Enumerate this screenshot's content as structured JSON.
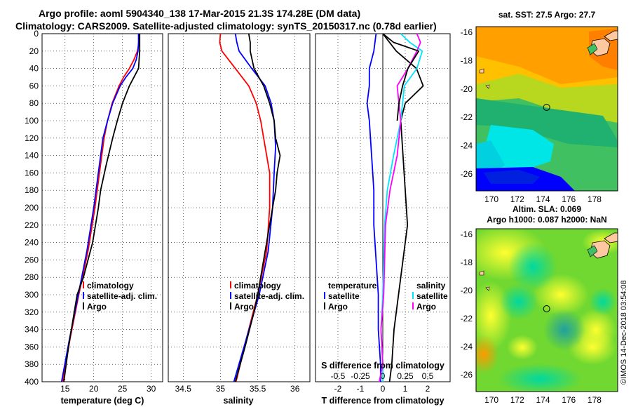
{
  "title": {
    "line1": "Argo profile: aoml 5904340_138 17-Mar-2015 21.3S 174.28E (DM data)",
    "line2": "Climatology: CARS2009. Satellite-adjusted climatology: synTS_20150317.nc (0.78d earlier)"
  },
  "credit": "©IMOS 14-Dec-2018 03:54:08",
  "colors": {
    "climatology": "#ff0000",
    "satellite": "#0000ff",
    "argo": "#000000",
    "sat_sal": "#00e5ff",
    "clim_sal": "#ff00ff"
  },
  "chart_data": [
    {
      "type": "line",
      "panel": "temperature",
      "xlabel": "temperature (deg C)",
      "xlim": [
        11,
        32
      ],
      "ylim": [
        400,
        0
      ],
      "xticks": [
        15,
        20,
        25,
        30
      ],
      "yticks": [
        0,
        20,
        40,
        60,
        80,
        100,
        120,
        140,
        160,
        180,
        200,
        220,
        240,
        260,
        280,
        300,
        320,
        340,
        360,
        380,
        400
      ],
      "legend": {
        "position": "lower-right",
        "entries": [
          "climatology",
          "satellite-adj. clim.",
          "Argo"
        ]
      },
      "series": [
        {
          "name": "climatology",
          "color": "#ff0000",
          "depth": [
            0,
            10,
            20,
            30,
            40,
            50,
            60,
            80,
            100,
            120,
            150,
            200,
            250,
            300,
            350,
            400
          ],
          "values": [
            28.0,
            27.9,
            27.6,
            27.0,
            26.2,
            25.2,
            24.4,
            23.2,
            22.4,
            21.8,
            21.2,
            20.2,
            19.0,
            17.4,
            15.9,
            14.6
          ]
        },
        {
          "name": "satellite-adj. clim.",
          "color": "#0000ff",
          "depth": [
            0,
            10,
            20,
            30,
            40,
            50,
            60,
            80,
            100,
            120,
            150,
            200,
            250,
            300,
            350,
            400
          ],
          "values": [
            27.8,
            27.8,
            27.7,
            27.4,
            26.8,
            25.6,
            24.6,
            23.3,
            22.4,
            21.6,
            21.0,
            20.0,
            18.8,
            17.3,
            15.8,
            14.4
          ]
        },
        {
          "name": "Argo",
          "color": "#000000",
          "depth": [
            0,
            20,
            40,
            60,
            80,
            100,
            120,
            150,
            180,
            200,
            240,
            280,
            300,
            320,
            360,
            400
          ],
          "values": [
            28.0,
            28.0,
            27.8,
            26.2,
            25.0,
            24.1,
            23.3,
            22.2,
            21.2,
            20.8,
            19.8,
            18.2,
            17.1,
            16.6,
            15.6,
            14.8
          ]
        }
      ]
    },
    {
      "type": "line",
      "panel": "salinity",
      "xlabel": "salinity",
      "xlim": [
        34.3,
        36.2
      ],
      "ylim": [
        400,
        0
      ],
      "xticks": [
        34.5,
        35,
        35.5,
        36
      ],
      "xticklabels": [
        "34.5",
        "35",
        "35.5",
        "36"
      ],
      "yticks": [
        0,
        40,
        80,
        120,
        160,
        200,
        240,
        280,
        320,
        360,
        400
      ],
      "legend": {
        "position": "lower-right",
        "entries": [
          "climatology",
          "satellite-adj. clim.",
          "Argo"
        ]
      },
      "series": [
        {
          "name": "climatology",
          "color": "#ff0000",
          "depth": [
            0,
            10,
            20,
            40,
            60,
            80,
            100,
            130,
            160,
            200,
            250,
            300,
            350,
            400
          ],
          "values": [
            35.0,
            34.99,
            35.02,
            35.2,
            35.38,
            35.48,
            35.54,
            35.6,
            35.66,
            35.66,
            35.62,
            35.5,
            35.35,
            35.21
          ]
        },
        {
          "name": "satellite-adj. clim.",
          "color": "#0000ff",
          "depth": [
            0,
            10,
            20,
            40,
            60,
            80,
            100,
            130,
            160,
            200,
            250,
            300,
            350,
            400
          ],
          "values": [
            35.2,
            35.22,
            35.25,
            35.42,
            35.6,
            35.68,
            35.72,
            35.74,
            35.72,
            35.7,
            35.64,
            35.52,
            35.35,
            35.18
          ]
        },
        {
          "name": "Argo",
          "color": "#000000",
          "depth": [
            0,
            10,
            20,
            40,
            60,
            80,
            100,
            120,
            140,
            160,
            180,
            200,
            240,
            280,
            300,
            320,
            360,
            400
          ],
          "values": [
            35.38,
            35.4,
            35.4,
            35.45,
            35.58,
            35.66,
            35.72,
            35.74,
            35.8,
            35.76,
            35.74,
            35.7,
            35.62,
            35.54,
            35.5,
            35.45,
            35.33,
            35.2
          ]
        }
      ]
    },
    {
      "type": "line",
      "panel": "difference",
      "xlabel": "T difference from climatology",
      "xlabel_top": "S difference from climatology",
      "xlim": [
        -3,
        3
      ],
      "ylim": [
        400,
        0
      ],
      "xticks": [
        -2,
        -1,
        0,
        1,
        2
      ],
      "xticks_s": [
        -0.5,
        -0.25,
        0,
        0.25,
        0.5
      ],
      "xticklabels_s": [
        "-0.5",
        "-0.25",
        "0",
        "0.25",
        "0.5"
      ],
      "yticks": [
        0,
        40,
        80,
        120,
        160,
        200,
        240,
        280,
        320,
        360,
        400
      ],
      "legend": {
        "position": "lower",
        "temperature_heading": "temperature",
        "salinity_heading": "salinity",
        "entries_t": [
          "satellite",
          "Argo"
        ],
        "entries_s": [
          "satellite",
          "Argo"
        ]
      },
      "series": [
        {
          "name": "T satellite",
          "color": "#0000ff",
          "depth": [
            0,
            20,
            40,
            60,
            80,
            100,
            140,
            180,
            220,
            260,
            300,
            340,
            380,
            400
          ],
          "values": [
            -0.3,
            -0.4,
            -0.6,
            -0.6,
            -0.7,
            -0.6,
            -0.5,
            -0.4,
            -0.4,
            -0.3,
            -0.2,
            -0.2,
            -0.1,
            -0.1
          ]
        },
        {
          "name": "T Argo",
          "color": "#000000",
          "depth": [
            0,
            20,
            40,
            60,
            80,
            100,
            140,
            180,
            220,
            260,
            300,
            340,
            380,
            400
          ],
          "values": [
            0.0,
            0.6,
            1.5,
            1.8,
            1.0,
            0.8,
            0.9,
            1.0,
            1.1,
            0.9,
            0.7,
            0.5,
            0.4,
            0.3
          ]
        },
        {
          "name": "S satellite",
          "color": "#00e5ff",
          "depth": [
            0,
            10,
            20,
            40,
            60,
            80,
            100,
            140,
            180,
            220,
            260,
            300,
            340,
            380,
            400
          ],
          "values": [
            0.2,
            0.3,
            0.44,
            0.38,
            0.24,
            0.22,
            0.2,
            0.12,
            0.05,
            0.02,
            0.01,
            0.0,
            -0.02,
            0.0,
            0.0
          ]
        },
        {
          "name": "S Argo",
          "color": "#ff00ff",
          "depth": [
            0,
            10,
            20,
            40,
            60,
            80,
            100,
            140,
            180,
            220,
            260,
            300,
            340,
            380,
            400
          ],
          "values": [
            0.38,
            0.42,
            0.38,
            0.28,
            0.16,
            0.18,
            0.2,
            0.16,
            0.08,
            0.03,
            0.02,
            0.01,
            -0.02,
            0.0,
            -0.04
          ]
        },
        {
          "name": "S Argo black",
          "color": "#000000",
          "depth": [
            0,
            10,
            20,
            40,
            60,
            80,
            100
          ],
          "values": [
            0.0,
            0.12,
            0.4,
            0.28,
            0.22,
            0.18,
            0.16
          ]
        }
      ]
    },
    {
      "type": "heatmap",
      "panel": "sst-map",
      "title": "sat. SST: 27.5  Argo: 27.7",
      "xticks": [
        170,
        172,
        174,
        176,
        178
      ],
      "yticks": [
        -16,
        -18,
        -20,
        -22,
        -24,
        -26
      ],
      "xlim": [
        168.8,
        179.8
      ],
      "ylim": [
        -27.2,
        -15.6
      ],
      "marker": {
        "lon": 174.28,
        "lat": -21.3
      }
    },
    {
      "type": "heatmap",
      "panel": "sla-map",
      "title_line1": "Altim. SLA: 0.069",
      "title_line2": "Argo h1000: 0.087 h2000: NaN",
      "xticks": [
        170,
        172,
        174,
        176,
        178
      ],
      "yticks": [
        -16,
        -18,
        -20,
        -22,
        -24,
        -26
      ],
      "xlim": [
        168.8,
        179.8
      ],
      "ylim": [
        -27.2,
        -15.6
      ],
      "marker": {
        "lon": 174.28,
        "lat": -21.3
      }
    }
  ]
}
